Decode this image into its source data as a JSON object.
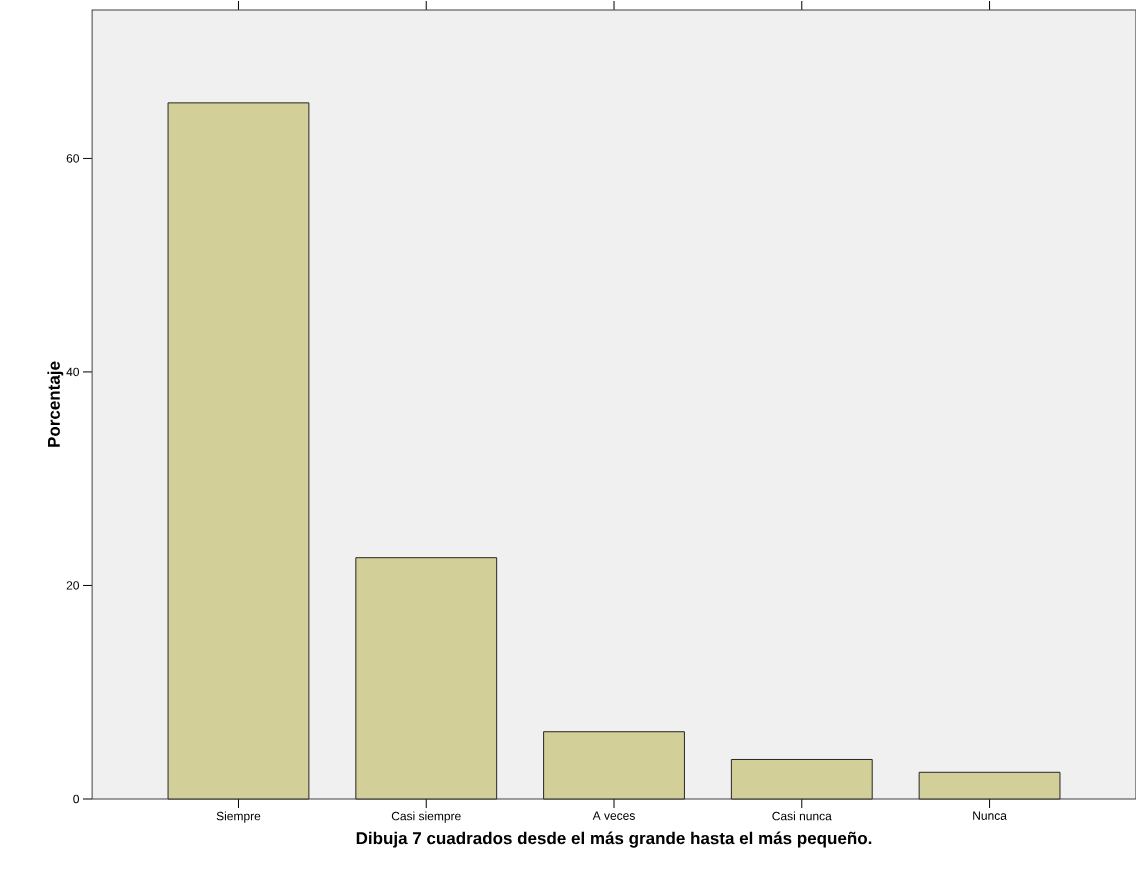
{
  "chart_data": {
    "type": "bar",
    "xlabel": "Dibuja 7 cuadrados desde el más grande hasta el más pequeño.",
    "ylabel": "Porcentaje",
    "categories": [
      "Siempre",
      "Casi siempre",
      "A veces",
      "Casi nunca",
      "Nunca"
    ],
    "values": [
      65.2,
      22.6,
      6.3,
      3.7,
      2.5
    ],
    "color": "#d3cf98",
    "ylim": [
      0,
      73.9
    ],
    "yticks": [
      0,
      20,
      40,
      60
    ]
  }
}
